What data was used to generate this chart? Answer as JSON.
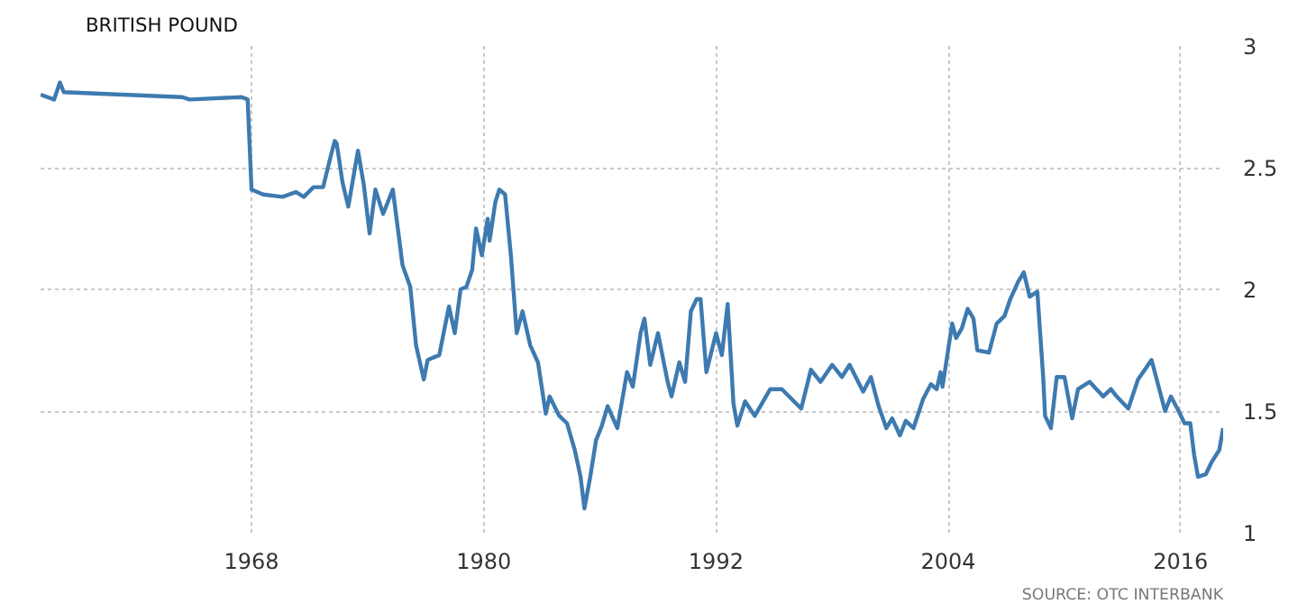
{
  "chart_data": {
    "type": "line",
    "title": "BRITISH POUND",
    "annotations": [
      "SOURCE: OTC INTERBANK"
    ],
    "x": [
      1957.1,
      1957.8,
      1958.1,
      1958.3,
      1964.4,
      1964.8,
      1967.5,
      1967.8,
      1968.0,
      1968.6,
      1969.6,
      1970.3,
      1970.7,
      1971.2,
      1971.7,
      1972.1,
      1972.3,
      1972.4,
      1972.7,
      1973.0,
      1973.5,
      1973.8,
      1974.1,
      1974.4,
      1974.8,
      1975.3,
      1975.8,
      1976.2,
      1976.5,
      1976.9,
      1977.1,
      1977.7,
      1978.2,
      1978.5,
      1978.8,
      1979.1,
      1979.4,
      1979.6,
      1979.9,
      1980.2,
      1980.3,
      1980.6,
      1980.8,
      1981.1,
      1981.4,
      1981.7,
      1982.0,
      1982.4,
      1982.8,
      1983.2,
      1983.4,
      1983.9,
      1984.3,
      1984.7,
      1985.0,
      1985.2,
      1985.5,
      1985.8,
      1986.1,
      1986.4,
      1986.9,
      1987.4,
      1987.7,
      1988.1,
      1988.3,
      1988.6,
      1989.0,
      1989.5,
      1989.7,
      1990.1,
      1990.4,
      1990.7,
      1991.0,
      1991.2,
      1991.5,
      1992.0,
      1992.3,
      1992.6,
      1992.9,
      1993.1,
      1993.5,
      1994.0,
      1994.8,
      1995.4,
      1996.4,
      1996.9,
      1997.4,
      1998.0,
      1998.5,
      1998.9,
      1999.6,
      2000.0,
      2000.4,
      2000.8,
      2001.1,
      2001.5,
      2001.8,
      2002.2,
      2002.7,
      2003.1,
      2003.4,
      2003.6,
      2003.7,
      2004.2,
      2004.4,
      2004.7,
      2005.0,
      2005.3,
      2005.5,
      2006.1,
      2006.5,
      2006.9,
      2007.2,
      2007.6,
      2007.9,
      2008.2,
      2008.6,
      2008.9,
      2009.0,
      2009.3,
      2009.6,
      2010.0,
      2010.4,
      2010.7,
      2011.3,
      2012.0,
      2012.4,
      2012.7,
      2013.3,
      2013.8,
      2014.5,
      2015.2,
      2015.5,
      2015.9,
      2016.2,
      2016.5,
      2016.7,
      2016.9,
      2017.3,
      2017.6,
      2018.0,
      2018.2
    ],
    "series": [
      {
        "color": "#3d7ab0",
        "values": [
          2.8,
          2.78,
          2.85,
          2.81,
          2.79,
          2.78,
          2.79,
          2.78,
          2.41,
          2.39,
          2.38,
          2.4,
          2.38,
          2.42,
          2.42,
          2.55,
          2.61,
          2.6,
          2.44,
          2.34,
          2.57,
          2.43,
          2.23,
          2.41,
          2.31,
          2.41,
          2.1,
          2.01,
          1.77,
          1.63,
          1.71,
          1.73,
          1.93,
          1.82,
          2.0,
          2.01,
          2.08,
          2.25,
          2.14,
          2.29,
          2.2,
          2.36,
          2.41,
          2.39,
          2.14,
          1.82,
          1.91,
          1.77,
          1.7,
          1.49,
          1.56,
          1.48,
          1.45,
          1.34,
          1.23,
          1.1,
          1.23,
          1.38,
          1.44,
          1.52,
          1.43,
          1.66,
          1.6,
          1.82,
          1.88,
          1.69,
          1.82,
          1.62,
          1.56,
          1.7,
          1.62,
          1.91,
          1.96,
          1.96,
          1.66,
          1.82,
          1.73,
          1.94,
          1.53,
          1.44,
          1.54,
          1.48,
          1.59,
          1.59,
          1.51,
          1.67,
          1.62,
          1.69,
          1.64,
          1.69,
          1.58,
          1.64,
          1.52,
          1.43,
          1.47,
          1.4,
          1.46,
          1.43,
          1.55,
          1.61,
          1.59,
          1.66,
          1.6,
          1.86,
          1.8,
          1.84,
          1.92,
          1.88,
          1.75,
          1.74,
          1.86,
          1.89,
          1.96,
          2.03,
          2.07,
          1.97,
          1.99,
          1.64,
          1.48,
          1.43,
          1.64,
          1.64,
          1.47,
          1.59,
          1.62,
          1.56,
          1.59,
          1.56,
          1.51,
          1.63,
          1.71,
          1.5,
          1.56,
          1.5,
          1.45,
          1.45,
          1.32,
          1.23,
          1.24,
          1.29,
          1.34,
          1.43
        ]
      }
    ],
    "xlim": [
      1957.1,
      2018.2
    ],
    "xticks": [
      1968,
      1980,
      1992,
      2004,
      2016
    ],
    "ylim": [
      1,
      3
    ],
    "yticks": [
      1,
      1.5,
      2,
      2.5,
      3
    ],
    "grid": true,
    "line_style": "solid"
  }
}
